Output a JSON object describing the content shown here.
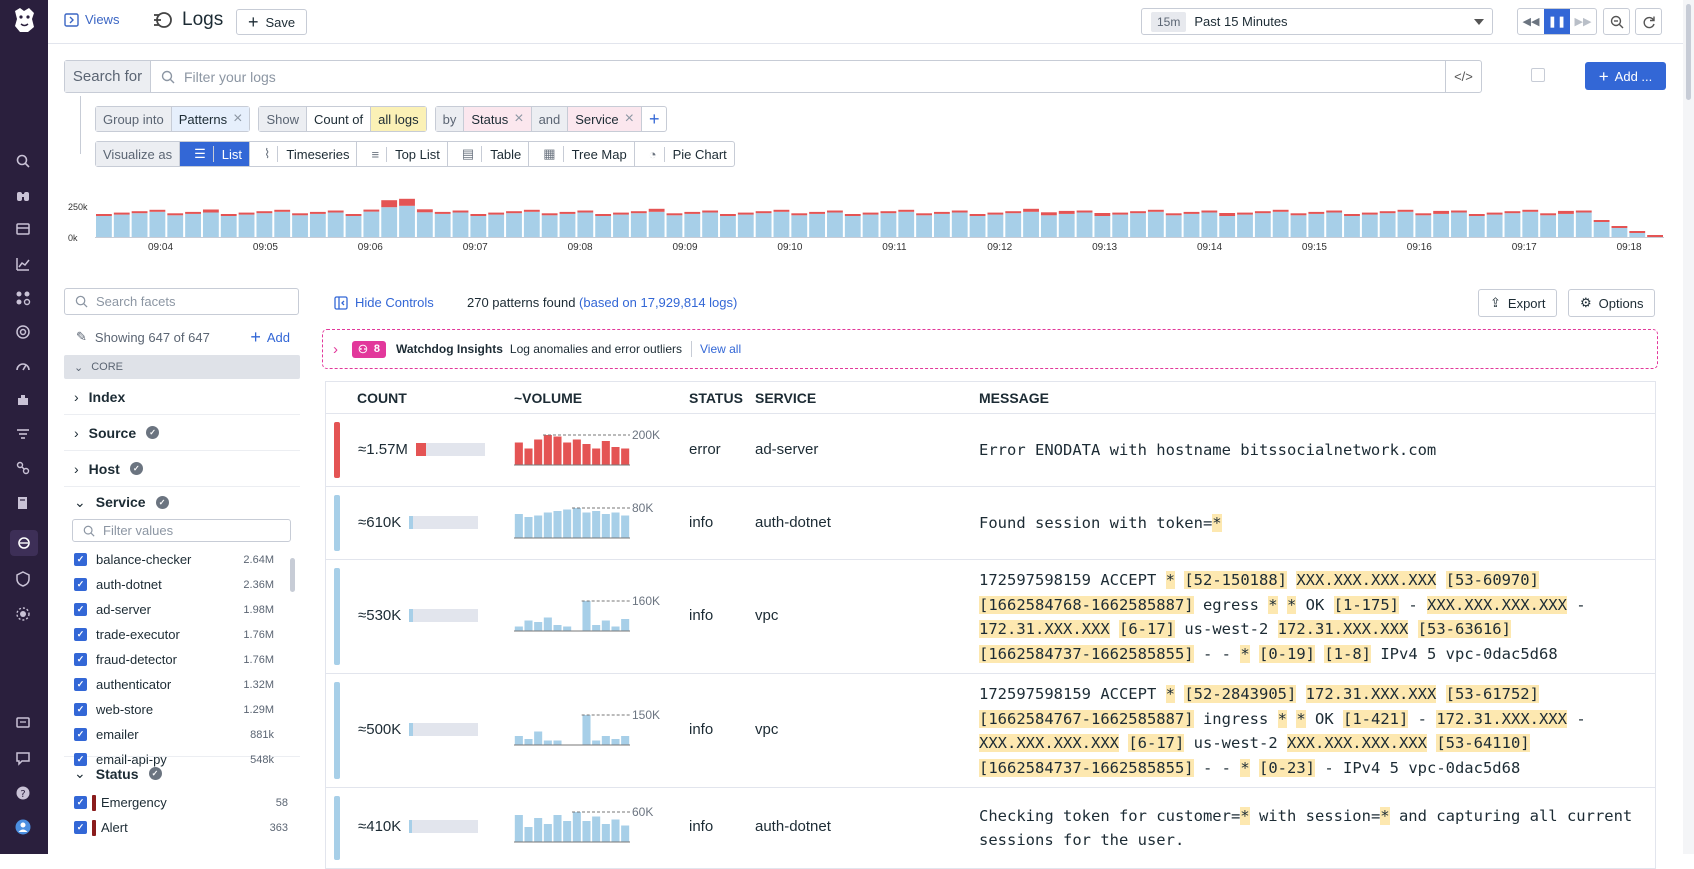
{
  "topbar": {
    "views_label": "Views",
    "title": "Logs",
    "save_label": "Save",
    "time_tag": "15m",
    "time_label": "Past 15 Minutes"
  },
  "search": {
    "prefix": "Search for",
    "placeholder": "Filter your logs",
    "add_label": "Add ..."
  },
  "query": {
    "group_into": "Group into",
    "group_value": "Patterns",
    "show": "Show",
    "count_of": "Count of",
    "all_logs": "all logs",
    "by": "by",
    "by_status": "Status",
    "and": "and",
    "by_service": "Service",
    "visualize_as": "Visualize as",
    "viz_options": [
      "List",
      "Timeseries",
      "Top List",
      "Table",
      "Tree Map",
      "Pie Chart"
    ],
    "viz_selected": "List"
  },
  "histogram": {
    "y_labels": [
      "250k",
      "0k"
    ],
    "x_labels": [
      "09:04",
      "09:05",
      "09:06",
      "09:07",
      "09:08",
      "09:09",
      "09:10",
      "09:11",
      "09:12",
      "09:13",
      "09:14",
      "09:15",
      "09:16",
      "09:17",
      "09:18"
    ],
    "colors": {
      "info": "#a7cfe8",
      "error": "#e45454"
    }
  },
  "sidebar": {
    "search_placeholder": "Search facets",
    "showing": "Showing 647 of 647",
    "add_label": "Add",
    "core_label": "CORE",
    "facets": [
      "Index",
      "Source",
      "Host",
      "Service"
    ],
    "filter_placeholder": "Filter values",
    "services": [
      {
        "name": "balance-checker",
        "count": "2.64M"
      },
      {
        "name": "auth-dotnet",
        "count": "2.36M"
      },
      {
        "name": "ad-server",
        "count": "1.98M"
      },
      {
        "name": "trade-executor",
        "count": "1.76M"
      },
      {
        "name": "fraud-detector",
        "count": "1.76M"
      },
      {
        "name": "authenticator",
        "count": "1.32M"
      },
      {
        "name": "web-store",
        "count": "1.29M"
      },
      {
        "name": "emailer",
        "count": "881k"
      },
      {
        "name": "email-api-py",
        "count": "548k"
      }
    ],
    "status_facet": "Status",
    "statuses": [
      {
        "name": "Emergency",
        "count": "58"
      },
      {
        "name": "Alert",
        "count": "363"
      }
    ]
  },
  "controls": {
    "hide_label": "Hide Controls",
    "patterns_found": "270 patterns found",
    "based_on": "(based on 17,929,814 logs)",
    "export_label": "Export",
    "options_label": "Options"
  },
  "watchdog": {
    "count": "8",
    "title": "Watchdog Insights",
    "subtitle": "Log anomalies and error outliers",
    "view_all": "View all"
  },
  "table": {
    "headers": [
      "COUNT",
      "~VOLUME",
      "STATUS",
      "SERVICE",
      "MESSAGE"
    ],
    "rows": [
      {
        "count": "≈1.57M",
        "fill": 0.14,
        "status": "error",
        "service": "ad-server",
        "peak": "200K",
        "color": "#e45454",
        "spark": [
          0.75,
          0.55,
          0.85,
          1.0,
          0.95,
          0.75,
          0.85,
          0.7,
          0.55,
          0.8,
          0.6,
          0.55
        ],
        "msg": [
          [
            [
              "Error ENODATA with hostname bitssocialnetwork.com",
              0
            ]
          ]
        ]
      },
      {
        "count": "≈610K",
        "fill": 0.06,
        "status": "info",
        "service": "auth-dotnet",
        "peak": "80K",
        "color": "#a7cfe8",
        "spark": [
          0.8,
          0.7,
          0.75,
          0.85,
          0.9,
          0.95,
          1.0,
          0.85,
          0.9,
          0.8,
          0.85,
          0.75
        ],
        "msg": [
          [
            [
              "Found session with token=",
              0
            ],
            [
              "*",
              1
            ]
          ]
        ]
      },
      {
        "count": "≈530K",
        "fill": 0.05,
        "status": "info",
        "service": "vpc",
        "peak": "160K",
        "color": "#a7cfe8",
        "spark": [
          0.15,
          0.35,
          0.3,
          0.45,
          0.2,
          0.15,
          0.0,
          1.0,
          0.2,
          0.35,
          0.15,
          0.4
        ],
        "msg": [
          [
            [
              "172597598159 ACCEPT ",
              0
            ],
            [
              "*",
              1
            ],
            [
              " ",
              0
            ],
            [
              "[52-150188]",
              1
            ],
            [
              " ",
              0
            ],
            [
              "XXX.XXX.XXX.XXX",
              1
            ],
            [
              " ",
              0
            ],
            [
              "[53-60970]",
              1
            ]
          ],
          [
            [
              "[1662584768-1662585887]",
              1
            ],
            [
              " egress ",
              0
            ],
            [
              "*",
              1
            ],
            [
              " ",
              0
            ],
            [
              "*",
              1
            ],
            [
              " OK ",
              0
            ],
            [
              "[1-175]",
              1
            ],
            [
              " - ",
              0
            ],
            [
              "XXX.XXX.XXX.XXX",
              1
            ],
            [
              " -",
              0
            ]
          ],
          [
            [
              "172.31.XXX.XXX",
              1
            ],
            [
              " ",
              0
            ],
            [
              "[6-17]",
              1
            ],
            [
              " us-west-2 ",
              0
            ],
            [
              "172.31.XXX.XXX",
              1
            ],
            [
              " ",
              0
            ],
            [
              "[53-63616]",
              1
            ]
          ],
          [
            [
              "[1662584737-1662585855]",
              1
            ],
            [
              " - - ",
              0
            ],
            [
              "*",
              1
            ],
            [
              " ",
              0
            ],
            [
              "[0-19]",
              1
            ],
            [
              " ",
              0
            ],
            [
              "[1-8]",
              1
            ],
            [
              " IPv4 5 vpc-0dac5d68",
              0
            ]
          ]
        ]
      },
      {
        "count": "≈500K",
        "fill": 0.05,
        "status": "info",
        "service": "vpc",
        "peak": "150K",
        "color": "#a7cfe8",
        "spark": [
          0.3,
          0.2,
          0.45,
          0.15,
          0.15,
          0.0,
          0.0,
          1.0,
          0.15,
          0.3,
          0.2,
          0.3
        ],
        "msg": [
          [
            [
              "172597598159 ACCEPT ",
              0
            ],
            [
              "*",
              1
            ],
            [
              " ",
              0
            ],
            [
              "[52-2843905]",
              1
            ],
            [
              " ",
              0
            ],
            [
              "172.31.XXX.XXX",
              1
            ],
            [
              " ",
              0
            ],
            [
              "[53-61752]",
              1
            ]
          ],
          [
            [
              "[1662584767-1662585887]",
              1
            ],
            [
              " ingress ",
              0
            ],
            [
              "*",
              1
            ],
            [
              " ",
              0
            ],
            [
              "*",
              1
            ],
            [
              " OK ",
              0
            ],
            [
              "[1-421]",
              1
            ],
            [
              " - ",
              0
            ],
            [
              "172.31.XXX.XXX",
              1
            ],
            [
              " -",
              0
            ]
          ],
          [
            [
              "XXX.XXX.XXX.XXX",
              1
            ],
            [
              " ",
              0
            ],
            [
              "[6-17]",
              1
            ],
            [
              " us-west-2 ",
              0
            ],
            [
              "XXX.XXX.XXX.XXX",
              1
            ],
            [
              " ",
              0
            ],
            [
              "[53-64110]",
              1
            ]
          ],
          [
            [
              "[1662584737-1662585855]",
              1
            ],
            [
              " - - ",
              0
            ],
            [
              "*",
              1
            ],
            [
              " ",
              0
            ],
            [
              "[0-23]",
              1
            ],
            [
              " - IPv4 5 vpc-0dac5d68",
              0
            ]
          ]
        ]
      },
      {
        "count": "≈410K",
        "fill": 0.04,
        "status": "info",
        "service": "auth-dotnet",
        "peak": "60K",
        "color": "#a7cfe8",
        "spark": [
          0.9,
          0.5,
          0.8,
          0.6,
          0.9,
          0.7,
          1.0,
          0.7,
          0.85,
          0.6,
          0.75,
          0.55
        ],
        "msg": [
          [
            [
              "Checking token for customer=",
              0
            ],
            [
              "*",
              1
            ],
            [
              " with session=",
              0
            ],
            [
              "*",
              1
            ],
            [
              " and capturing all current",
              0
            ]
          ],
          [
            [
              "sessions for the user.",
              0
            ]
          ]
        ]
      }
    ]
  }
}
